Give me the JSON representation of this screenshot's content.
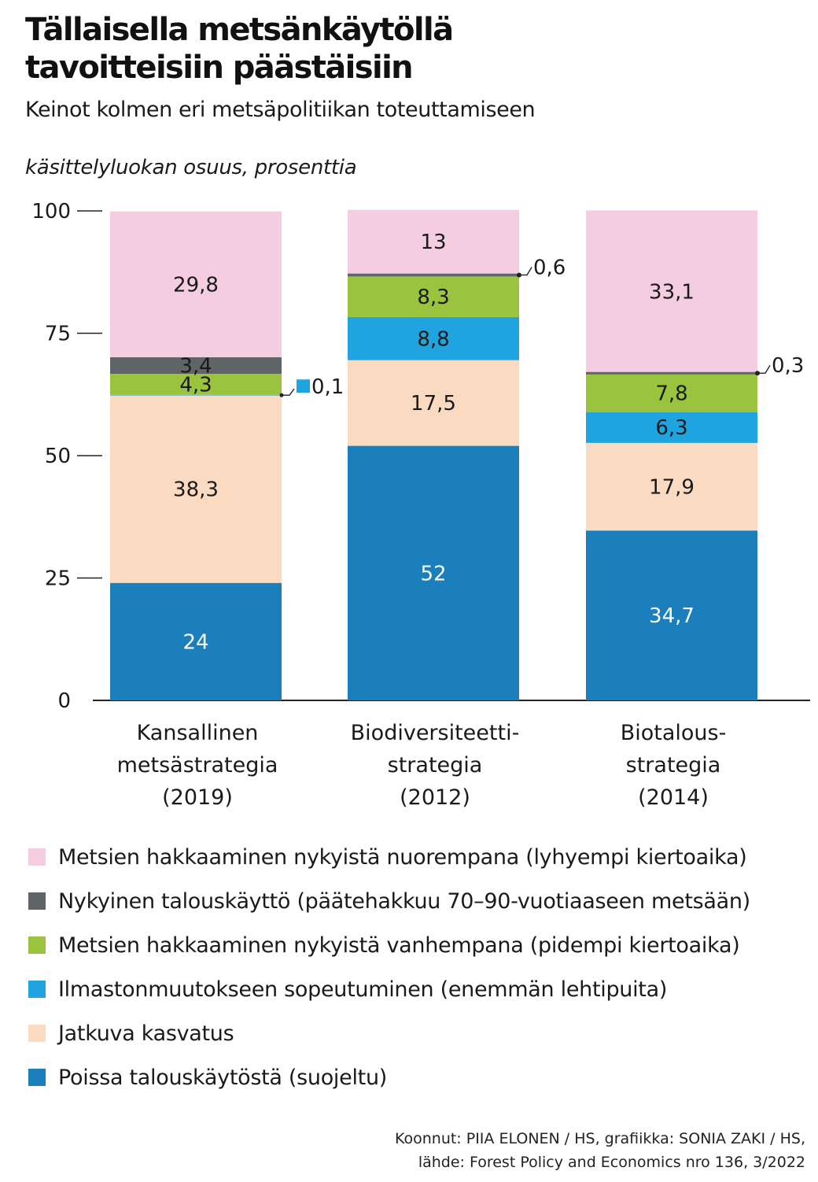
{
  "header": {
    "title_line1": "Tällaisella metsänkäytöllä",
    "title_line2": "tavoitteisiin päästäisiin",
    "subtitle": "Keinot kolmen eri metsäpolitiikan toteuttamiseen",
    "unit": "käsittelyluokan osuus, prosenttia"
  },
  "colors": {
    "pink": "#f4cde1",
    "dark_gray": "#5f6467",
    "green": "#9ac43d",
    "light_blue": "#1fa4e0",
    "peach": "#fbdac2",
    "dark_blue": "#1a7fbb",
    "axis": "#222222"
  },
  "chart_data": {
    "type": "bar",
    "stacked": true,
    "ylim": [
      0,
      100
    ],
    "yticks": [
      "0",
      "25",
      "50",
      "75",
      "100"
    ],
    "categories": [
      [
        "Kansallinen",
        "metsästrategia",
        "(2019)"
      ],
      [
        "Biodiversiteetti-",
        "strategia",
        "(2012)"
      ],
      [
        "Biotalous-",
        "strategia",
        "(2014)"
      ]
    ],
    "series": [
      {
        "name": "Poissa talouskäytöstä (suojeltu)",
        "color": "#1a7fbb",
        "values": [
          24,
          52,
          34.7
        ],
        "labels": [
          "24",
          "52",
          "34,7"
        ]
      },
      {
        "name": "Jatkuva kasvatus",
        "color": "#fbdac2",
        "values": [
          38.3,
          17.5,
          17.9
        ],
        "labels": [
          "38,3",
          "17,5",
          "17,9"
        ]
      },
      {
        "name": "Ilmastonmuutokseen sopeutuminen (enemmän lehtipuita)",
        "color": "#1fa4e0",
        "values": [
          0.1,
          8.8,
          6.3
        ],
        "labels": [
          "0,1",
          "8,8",
          "6,3"
        ]
      },
      {
        "name": "Metsien hakkaaminen nykyistä vanhempana (pidempi kiertoaika)",
        "color": "#9ac43d",
        "values": [
          4.3,
          8.3,
          7.8
        ],
        "labels": [
          "4,3",
          "8,3",
          "7,8"
        ]
      },
      {
        "name": "Nykyinen talouskäyttö (päätehakkuu 70–90-vuotiaaseen metsään)",
        "color": "#5f6467",
        "values": [
          3.4,
          0.6,
          0.3
        ],
        "labels": [
          "3,4",
          "0,6",
          "0,3"
        ]
      },
      {
        "name": "Metsien hakkaaminen nykyistä nuorempana (lyhyempi kiertoaika)",
        "color": "#f4cde1",
        "values": [
          29.8,
          13,
          33.1
        ],
        "labels": [
          "29,8",
          "13",
          "33,1"
        ]
      }
    ]
  },
  "legend": {
    "items": [
      {
        "label": "Metsien hakkaaminen nykyistä nuorempana (lyhyempi kiertoaika)",
        "color": "#f4cde1"
      },
      {
        "label": "Nykyinen talouskäyttö (päätehakkuu 70–90-vuotiaaseen metsään)",
        "color": "#5f6467"
      },
      {
        "label": "Metsien hakkaaminen nykyistä vanhempana (pidempi kiertoaika)",
        "color": "#9ac43d"
      },
      {
        "label": "Ilmastonmuutokseen sopeutuminen (enemmän lehtipuita)",
        "color": "#1fa4e0"
      },
      {
        "label": "Jatkuva kasvatus",
        "color": "#fbdac2"
      },
      {
        "label": "Poissa talouskäytöstä (suojeltu)",
        "color": "#1a7fbb"
      }
    ]
  },
  "credits": {
    "line1": "Koonnut: PIIA ELONEN / HS, grafiikka: SONIA ZAKI / HS,",
    "line2": "lähde: Forest Policy and Economics nro 136, 3/2022"
  }
}
